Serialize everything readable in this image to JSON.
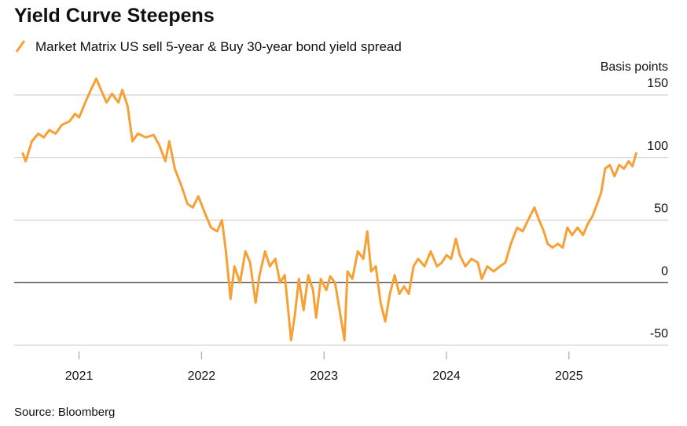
{
  "chart_data": {
    "type": "line",
    "title": "Yield Curve Steepens",
    "y_label": "Basis points",
    "source": "Source: Bloomberg",
    "series": [
      {
        "name": "Market Matrix US sell 5-year & Buy 30-year bond yield spread",
        "color": "#f7a035",
        "x": [
          2020.538,
          2020.564,
          2020.615,
          2020.667,
          2020.712,
          2020.756,
          2020.808,
          2020.859,
          2020.923,
          2020.968,
          2021.0,
          2021.051,
          2021.096,
          2021.141,
          2021.179,
          2021.224,
          2021.269,
          2021.321,
          2021.353,
          2021.397,
          2021.436,
          2021.481,
          2021.545,
          2021.609,
          2021.654,
          2021.705,
          2021.737,
          2021.782,
          2021.833,
          2021.885,
          2021.929,
          2021.974,
          2022.026,
          2022.077,
          2022.128,
          2022.167,
          2022.199,
          2022.237,
          2022.269,
          2022.314,
          2022.359,
          2022.397,
          2022.442,
          2022.474,
          2022.519,
          2022.558,
          2022.603,
          2022.641,
          2022.679,
          2022.705,
          2022.731,
          2022.763,
          2022.795,
          2022.833,
          2022.872,
          2022.91,
          2022.936,
          2022.974,
          2023.019,
          2023.051,
          2023.09,
          2023.128,
          2023.167,
          2023.192,
          2023.231,
          2023.276,
          2023.321,
          2023.353,
          2023.385,
          2023.423,
          2023.462,
          2023.5,
          2023.538,
          2023.577,
          2023.615,
          2023.654,
          2023.692,
          2023.731,
          2023.769,
          2023.821,
          2023.872,
          2023.923,
          2023.962,
          2024.0,
          2024.038,
          2024.077,
          2024.109,
          2024.154,
          2024.205,
          2024.256,
          2024.288,
          2024.333,
          2024.385,
          2024.436,
          2024.481,
          2024.526,
          2024.577,
          2024.622,
          2024.667,
          2024.718,
          2024.756,
          2024.795,
          2024.827,
          2024.865,
          2024.91,
          2024.949,
          2024.987,
          2025.026,
          2025.071,
          2025.115,
          2025.154,
          2025.192,
          2025.231,
          2025.263,
          2025.295,
          2025.333,
          2025.372,
          2025.41,
          2025.449,
          2025.487,
          2025.519,
          2025.551
        ],
        "values": [
          104,
          97,
          113,
          119,
          116,
          122,
          119,
          126,
          129,
          135,
          132,
          144,
          154,
          163,
          154,
          144,
          151,
          144,
          154,
          141,
          113,
          119,
          116,
          118,
          110,
          97,
          113,
          91,
          78,
          63,
          60,
          69,
          56,
          44,
          41,
          50,
          25,
          -13,
          13,
          0,
          25,
          16,
          -16,
          6,
          25,
          13,
          19,
          0,
          6,
          -19,
          -46,
          -25,
          3,
          -22,
          6,
          -6,
          -28,
          3,
          -6,
          5,
          0,
          -22,
          -46,
          9,
          3,
          25,
          19,
          41,
          9,
          13,
          -16,
          -31,
          -9,
          6,
          -9,
          -3,
          -9,
          13,
          19,
          13,
          25,
          13,
          16,
          22,
          19,
          35,
          22,
          13,
          19,
          16,
          3,
          13,
          9,
          13,
          16,
          31,
          44,
          41,
          50,
          60,
          50,
          41,
          31,
          28,
          31,
          28,
          44,
          38,
          44,
          38,
          47,
          53,
          63,
          72,
          91,
          94,
          85,
          94,
          91,
          97,
          93,
          104
        ]
      }
    ],
    "xlim": [
      2020.47,
      2025.81
    ],
    "xticks": [
      2021,
      2022,
      2023,
      2024,
      2025
    ],
    "ylim": [
      -50,
      150
    ],
    "yticks": [
      -50,
      0,
      50,
      100,
      150
    ],
    "grid": true
  }
}
